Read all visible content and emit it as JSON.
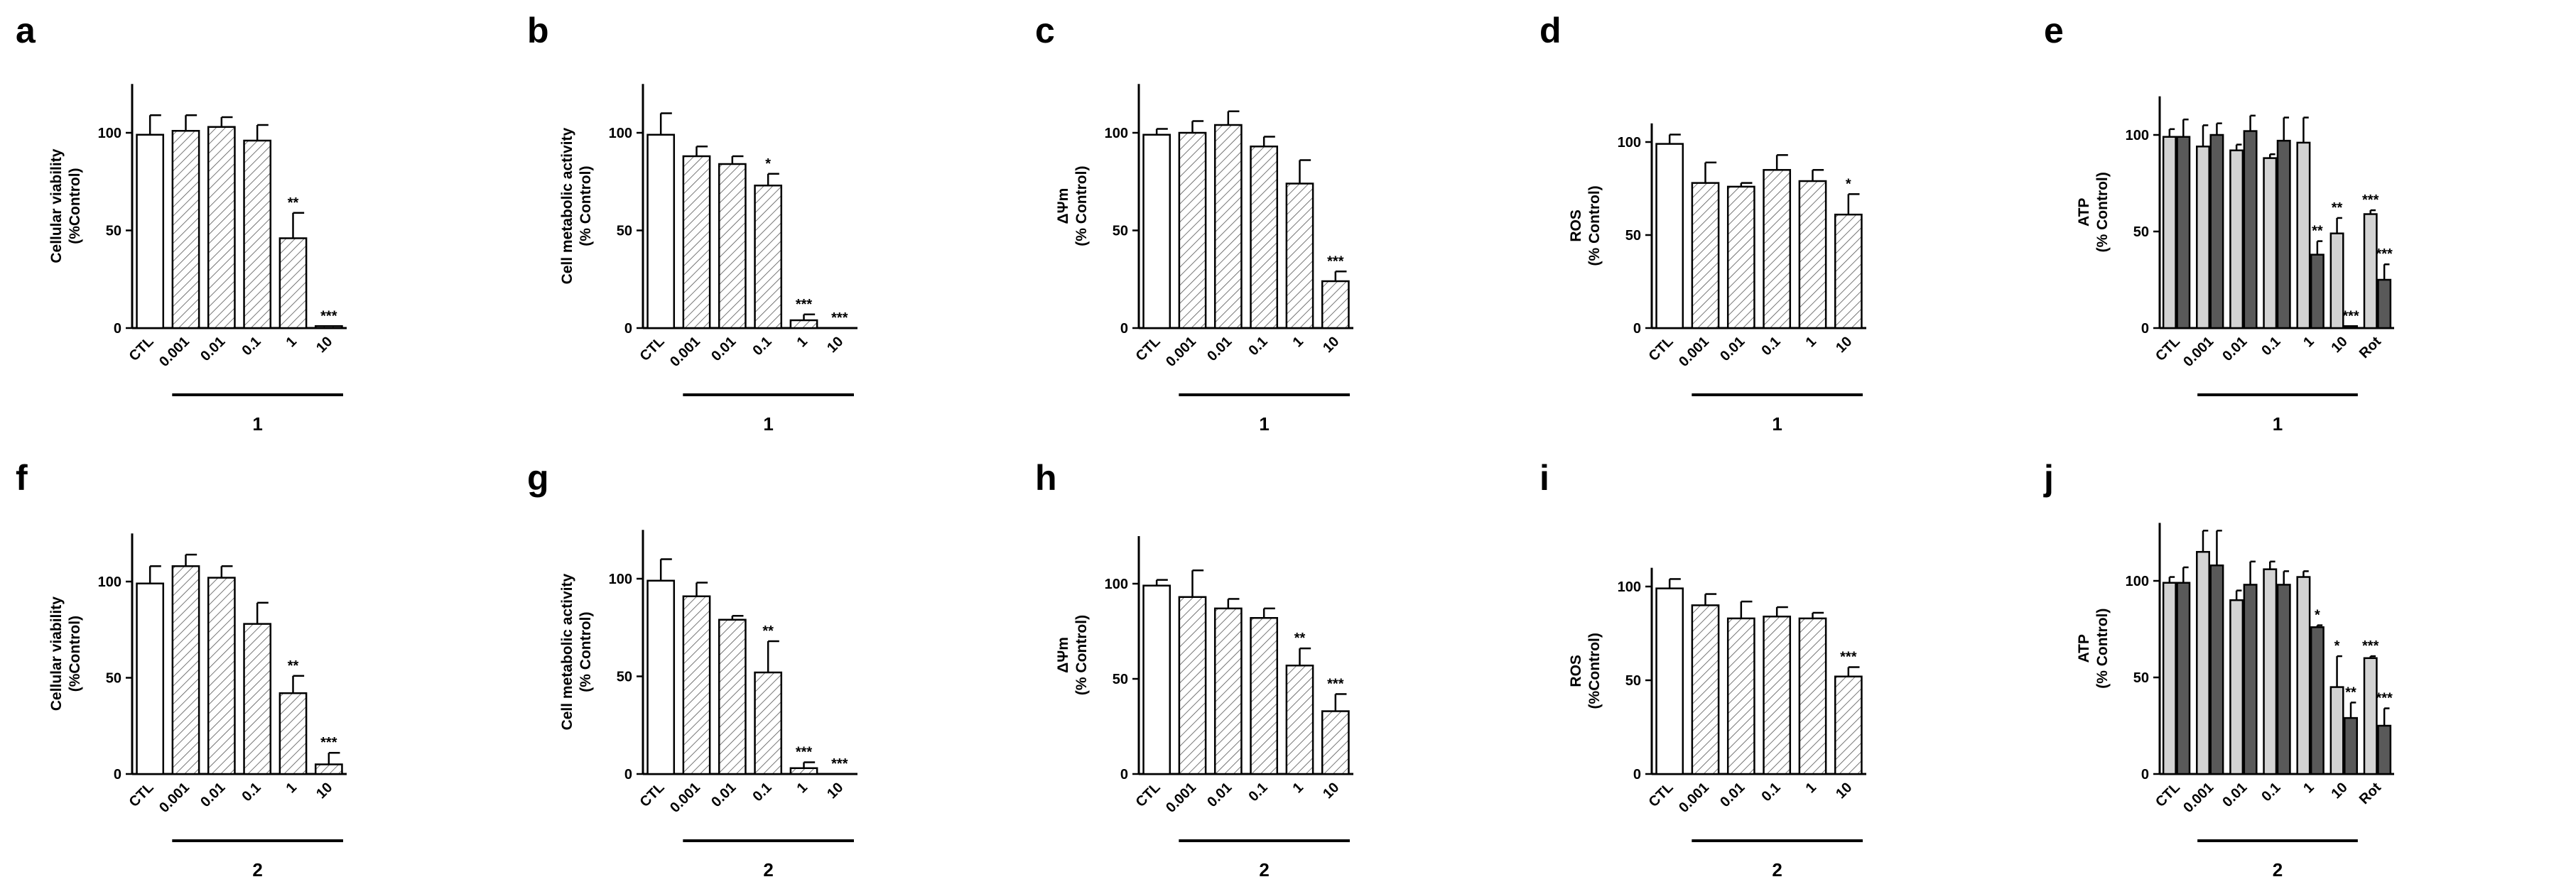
{
  "colors": {
    "axis": "#000000",
    "open": "#ffffff",
    "light": "#d3d3d3",
    "dark": "#595959",
    "hatch": "#555555"
  },
  "chart_data": [
    {
      "id": "a",
      "type": "bar",
      "style": "hatched",
      "ylabel": [
        "Cellular viability",
        "(%Control)"
      ],
      "ylim": [
        0,
        125
      ],
      "yticks": [
        "0",
        "50",
        "100"
      ],
      "categories": [
        "CTL",
        "0.001",
        "0.01",
        "0.1",
        "1",
        "10"
      ],
      "compound": "1",
      "values": [
        99,
        101,
        103,
        96,
        46,
        1
      ],
      "errors": [
        10,
        8,
        5,
        8,
        13,
        0
      ],
      "significance": [
        "",
        "",
        "",
        "",
        "**",
        "***"
      ]
    },
    {
      "id": "b",
      "type": "bar",
      "style": "hatched",
      "ylabel": [
        "Cell metabolic activity",
        "(% Control)"
      ],
      "ylim": [
        0,
        125
      ],
      "yticks": [
        "0",
        "50",
        "100"
      ],
      "categories": [
        "CTL",
        "0.001",
        "0.01",
        "0.1",
        "1",
        "10"
      ],
      "compound": "1",
      "values": [
        99,
        88,
        84,
        73,
        4,
        0
      ],
      "errors": [
        11,
        5,
        4,
        6,
        3,
        0
      ],
      "significance": [
        "",
        "",
        "",
        "*",
        "***",
        "***"
      ]
    },
    {
      "id": "c",
      "type": "bar",
      "style": "hatched",
      "ylabel": [
        "ΔΨm",
        "(% Control)"
      ],
      "ylim": [
        0,
        125
      ],
      "yticks": [
        "0",
        "50",
        "100"
      ],
      "categories": [
        "CTL",
        "0.001",
        "0.01",
        "0.1",
        "1",
        "10"
      ],
      "compound": "1",
      "values": [
        99,
        100,
        104,
        93,
        74,
        24
      ],
      "errors": [
        3,
        6,
        7,
        5,
        12,
        5
      ],
      "significance": [
        "",
        "",
        "",
        "",
        "",
        "***"
      ]
    },
    {
      "id": "d",
      "type": "bar",
      "style": "hatched",
      "ylabel": [
        "ROS",
        "(% Control)"
      ],
      "ylim": [
        0,
        110
      ],
      "yticks": [
        "0",
        "50",
        "100"
      ],
      "categories": [
        "CTL",
        "0.001",
        "0.01",
        "0.1",
        "1",
        "10"
      ],
      "compound": "1",
      "values": [
        99,
        78,
        76,
        85,
        79,
        61
      ],
      "errors": [
        5,
        11,
        2,
        8,
        6,
        11
      ],
      "significance": [
        "",
        "",
        "",
        "",
        "",
        "*"
      ]
    },
    {
      "id": "e",
      "type": "bar",
      "style": "grouped",
      "ylabel": [
        "ATP",
        "(% Control)"
      ],
      "ylim": [
        0,
        120
      ],
      "yticks": [
        "0",
        "50",
        "100"
      ],
      "categories": [
        "CTL",
        "0.001",
        "0.01",
        "0.1",
        "1",
        "10",
        "Rot"
      ],
      "compound": "1",
      "series": [
        {
          "name": "light",
          "values": [
            99,
            94,
            92,
            88,
            96,
            49,
            59
          ],
          "errors": [
            4,
            11,
            3,
            2,
            13,
            8,
            2
          ],
          "significance": [
            "",
            "",
            "",
            "",
            "",
            "**",
            "***"
          ]
        },
        {
          "name": "dark",
          "values": [
            99,
            100,
            102,
            97,
            38,
            1,
            25
          ],
          "errors": [
            9,
            6,
            8,
            12,
            7,
            0,
            8
          ],
          "significance": [
            "",
            "",
            "",
            "",
            "**",
            "***",
            "***"
          ]
        }
      ]
    },
    {
      "id": "f",
      "type": "bar",
      "style": "hatched",
      "ylabel": [
        "Cellular viability",
        "(%Control)"
      ],
      "ylim": [
        0,
        125
      ],
      "yticks": [
        "0",
        "50",
        "100"
      ],
      "categories": [
        "CTL",
        "0.001",
        "0.01",
        "0.1",
        "1",
        "10"
      ],
      "compound": "2",
      "values": [
        99,
        108,
        102,
        78,
        42,
        5
      ],
      "errors": [
        9,
        6,
        6,
        11,
        9,
        6
      ],
      "significance": [
        "",
        "",
        "",
        "",
        "**",
        "***"
      ]
    },
    {
      "id": "g",
      "type": "bar",
      "style": "hatched",
      "ylabel": [
        "Cell metabolic activity",
        "(% Control)"
      ],
      "ylim": [
        0,
        125
      ],
      "yticks": [
        "0",
        "50",
        "100"
      ],
      "categories": [
        "CTL",
        "0.001",
        "0.01",
        "0.1",
        "1",
        "10"
      ],
      "compound": "2",
      "values": [
        99,
        91,
        79,
        52,
        3,
        0
      ],
      "errors": [
        11,
        7,
        2,
        16,
        3,
        0
      ],
      "significance": [
        "",
        "",
        "",
        "**",
        "***",
        "***"
      ]
    },
    {
      "id": "h",
      "type": "bar",
      "style": "hatched",
      "ylabel": [
        "ΔΨm",
        "(% Control)"
      ],
      "ylim": [
        0,
        125
      ],
      "yticks": [
        "0",
        "50",
        "100"
      ],
      "categories": [
        "CTL",
        "0.001",
        "0.01",
        "0.1",
        "1",
        "10"
      ],
      "compound": "2",
      "values": [
        99,
        93,
        87,
        82,
        57,
        33
      ],
      "errors": [
        3,
        14,
        5,
        5,
        9,
        9
      ],
      "significance": [
        "",
        "",
        "",
        "",
        "**",
        "***"
      ]
    },
    {
      "id": "i",
      "type": "bar",
      "style": "hatched",
      "ylabel": [
        "ROS",
        "(%Control)"
      ],
      "ylim": [
        0,
        110
      ],
      "yticks": [
        "0",
        "50",
        "100"
      ],
      "categories": [
        "CTL",
        "0.001",
        "0.01",
        "0.1",
        "1",
        "10"
      ],
      "compound": "2",
      "values": [
        99,
        90,
        83,
        84,
        83,
        52
      ],
      "errors": [
        5,
        6,
        9,
        5,
        3,
        5
      ],
      "significance": [
        "",
        "",
        "",
        "",
        "",
        "***"
      ]
    },
    {
      "id": "j",
      "type": "bar",
      "style": "grouped",
      "ylabel": [
        "ATP",
        "(% Control)"
      ],
      "ylim": [
        0,
        130
      ],
      "yticks": [
        "0",
        "50",
        "100"
      ],
      "categories": [
        "CTL",
        "0.001",
        "0.01",
        "0.1",
        "1",
        "10",
        "Rot"
      ],
      "compound": "2",
      "series": [
        {
          "name": "light",
          "values": [
            99,
            115,
            90,
            106,
            102,
            45,
            60
          ],
          "errors": [
            3,
            11,
            5,
            4,
            3,
            16,
            1
          ],
          "significance": [
            "",
            "",
            "",
            "",
            "",
            "*",
            "***"
          ]
        },
        {
          "name": "dark",
          "values": [
            99,
            108,
            98,
            98,
            76,
            29,
            25
          ],
          "errors": [
            8,
            18,
            12,
            7,
            1,
            8,
            9
          ],
          "significance": [
            "",
            "",
            "",
            "",
            "*",
            "**",
            "***"
          ]
        }
      ]
    }
  ]
}
